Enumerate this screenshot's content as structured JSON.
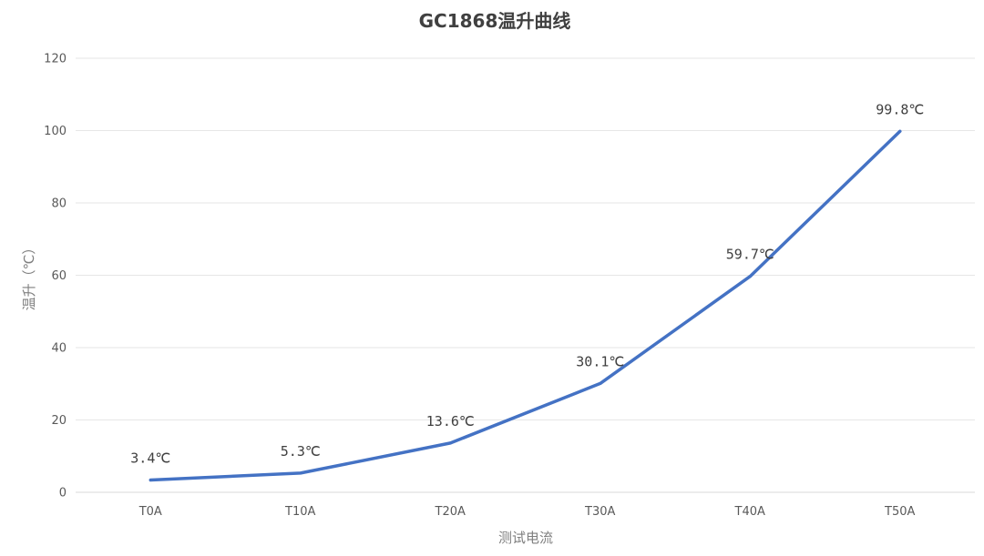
{
  "chart_data": {
    "type": "line",
    "title": "GC1868温升曲线",
    "xlabel": "测试电流",
    "ylabel": "温升（℃）",
    "categories": [
      "T0A",
      "T10A",
      "T20A",
      "T30A",
      "T40A",
      "T50A"
    ],
    "series": [
      {
        "values": [
          3.4,
          5.3,
          13.6,
          30.1,
          59.7,
          99.8
        ],
        "data_labels": [
          "3.4℃",
          "5.3℃",
          "13.6℃",
          "30.1℃",
          "59.7℃",
          "99.8℃"
        ],
        "color": "#4472c4"
      }
    ],
    "ylim": [
      0,
      120
    ],
    "yticks": [
      "0",
      "20",
      "40",
      "60",
      "80",
      "100",
      "120"
    ],
    "grid": true,
    "legend": "none"
  }
}
